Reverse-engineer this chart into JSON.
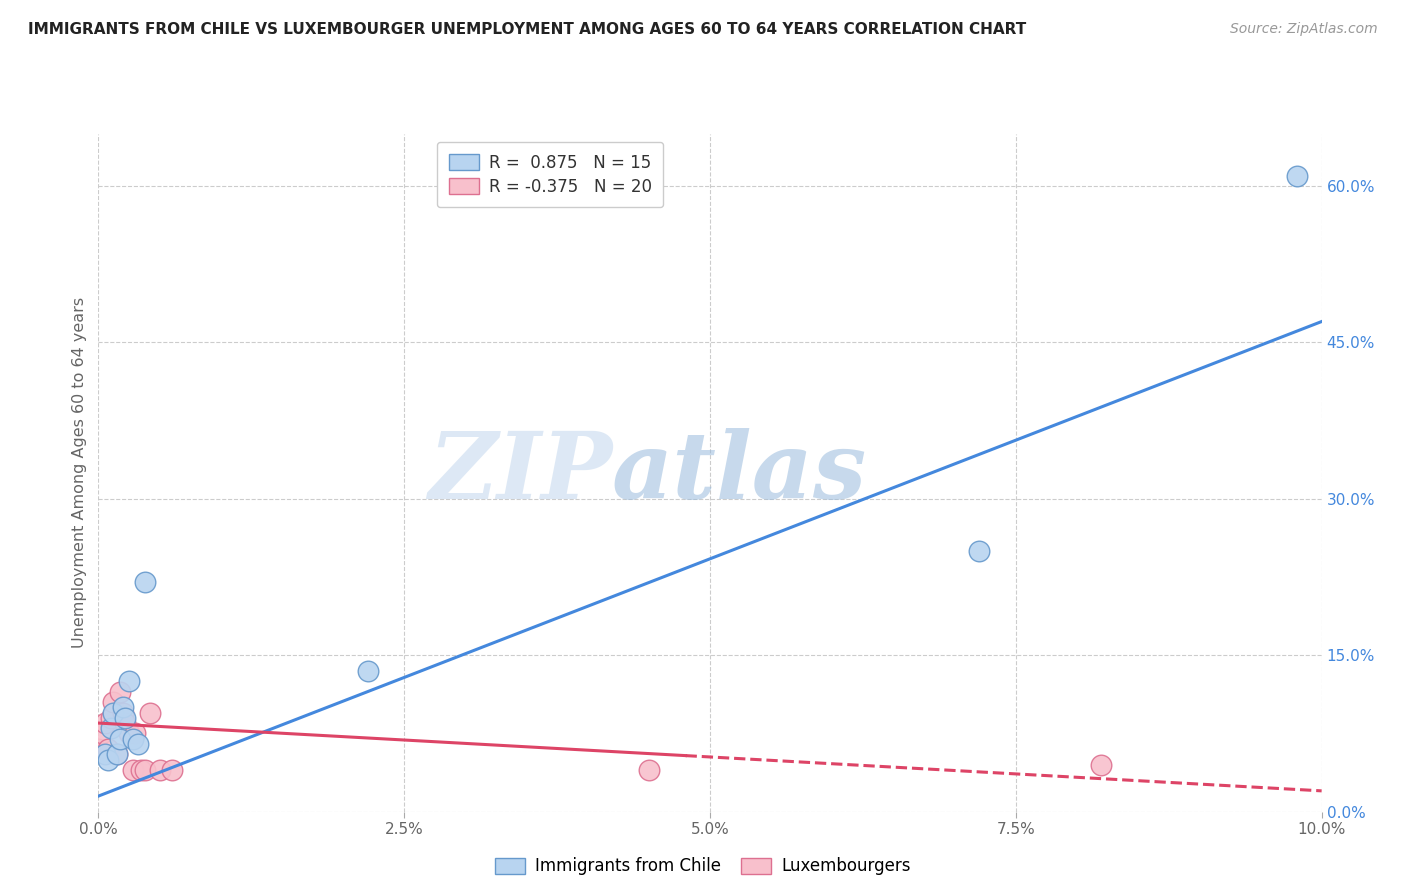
{
  "title": "IMMIGRANTS FROM CHILE VS LUXEMBOURGER UNEMPLOYMENT AMONG AGES 60 TO 64 YEARS CORRELATION CHART",
  "source": "Source: ZipAtlas.com",
  "ylabel": "Unemployment Among Ages 60 to 64 years",
  "xlim": [
    0.0,
    10.0
  ],
  "ylim": [
    0.0,
    65.0
  ],
  "xtick_labels": [
    "0.0%",
    "2.5%",
    "5.0%",
    "7.5%",
    "10.0%"
  ],
  "xtick_vals": [
    0.0,
    2.5,
    5.0,
    7.5,
    10.0
  ],
  "ytick_labels_right": [
    "0.0%",
    "15.0%",
    "30.0%",
    "45.0%",
    "60.0%"
  ],
  "ytick_vals_right": [
    0.0,
    15.0,
    30.0,
    45.0,
    60.0
  ],
  "legend1_label": "R =  0.875   N = 15",
  "legend2_label": "R = -0.375   N = 20",
  "series1_color": "#b8d4f0",
  "series1_edge": "#6699cc",
  "series2_color": "#f8c0cc",
  "series2_edge": "#dd7090",
  "line1_color": "#4488dd",
  "line2_color": "#dd4466",
  "watermark_zip": "ZIP",
  "watermark_atlas": "atlas",
  "chile_x": [
    0.05,
    0.08,
    0.1,
    0.12,
    0.15,
    0.18,
    0.2,
    0.22,
    0.25,
    0.28,
    0.32,
    0.38,
    2.2,
    7.2,
    9.8
  ],
  "chile_y": [
    5.5,
    5.0,
    8.0,
    9.5,
    5.5,
    7.0,
    10.0,
    9.0,
    12.5,
    7.0,
    6.5,
    22.0,
    13.5,
    25.0,
    61.0
  ],
  "lux_x": [
    0.0,
    0.03,
    0.05,
    0.08,
    0.1,
    0.12,
    0.15,
    0.18,
    0.2,
    0.22,
    0.25,
    0.28,
    0.3,
    0.35,
    0.38,
    0.42,
    0.5,
    0.6,
    4.5,
    8.2
  ],
  "lux_y": [
    6.0,
    7.5,
    8.5,
    6.0,
    9.0,
    10.5,
    5.5,
    11.5,
    9.5,
    8.5,
    7.5,
    4.0,
    7.5,
    4.0,
    4.0,
    9.5,
    4.0,
    4.0,
    4.0,
    4.5
  ],
  "line1_x0": 0.0,
  "line1_y0": 1.5,
  "line1_x1": 10.0,
  "line1_y1": 47.0,
  "line2_x0": 0.0,
  "line2_y0": 8.5,
  "line2_x1": 10.0,
  "line2_y1": 2.0,
  "line2_solid_end": 4.8,
  "background_color": "#ffffff",
  "grid_color": "#cccccc"
}
